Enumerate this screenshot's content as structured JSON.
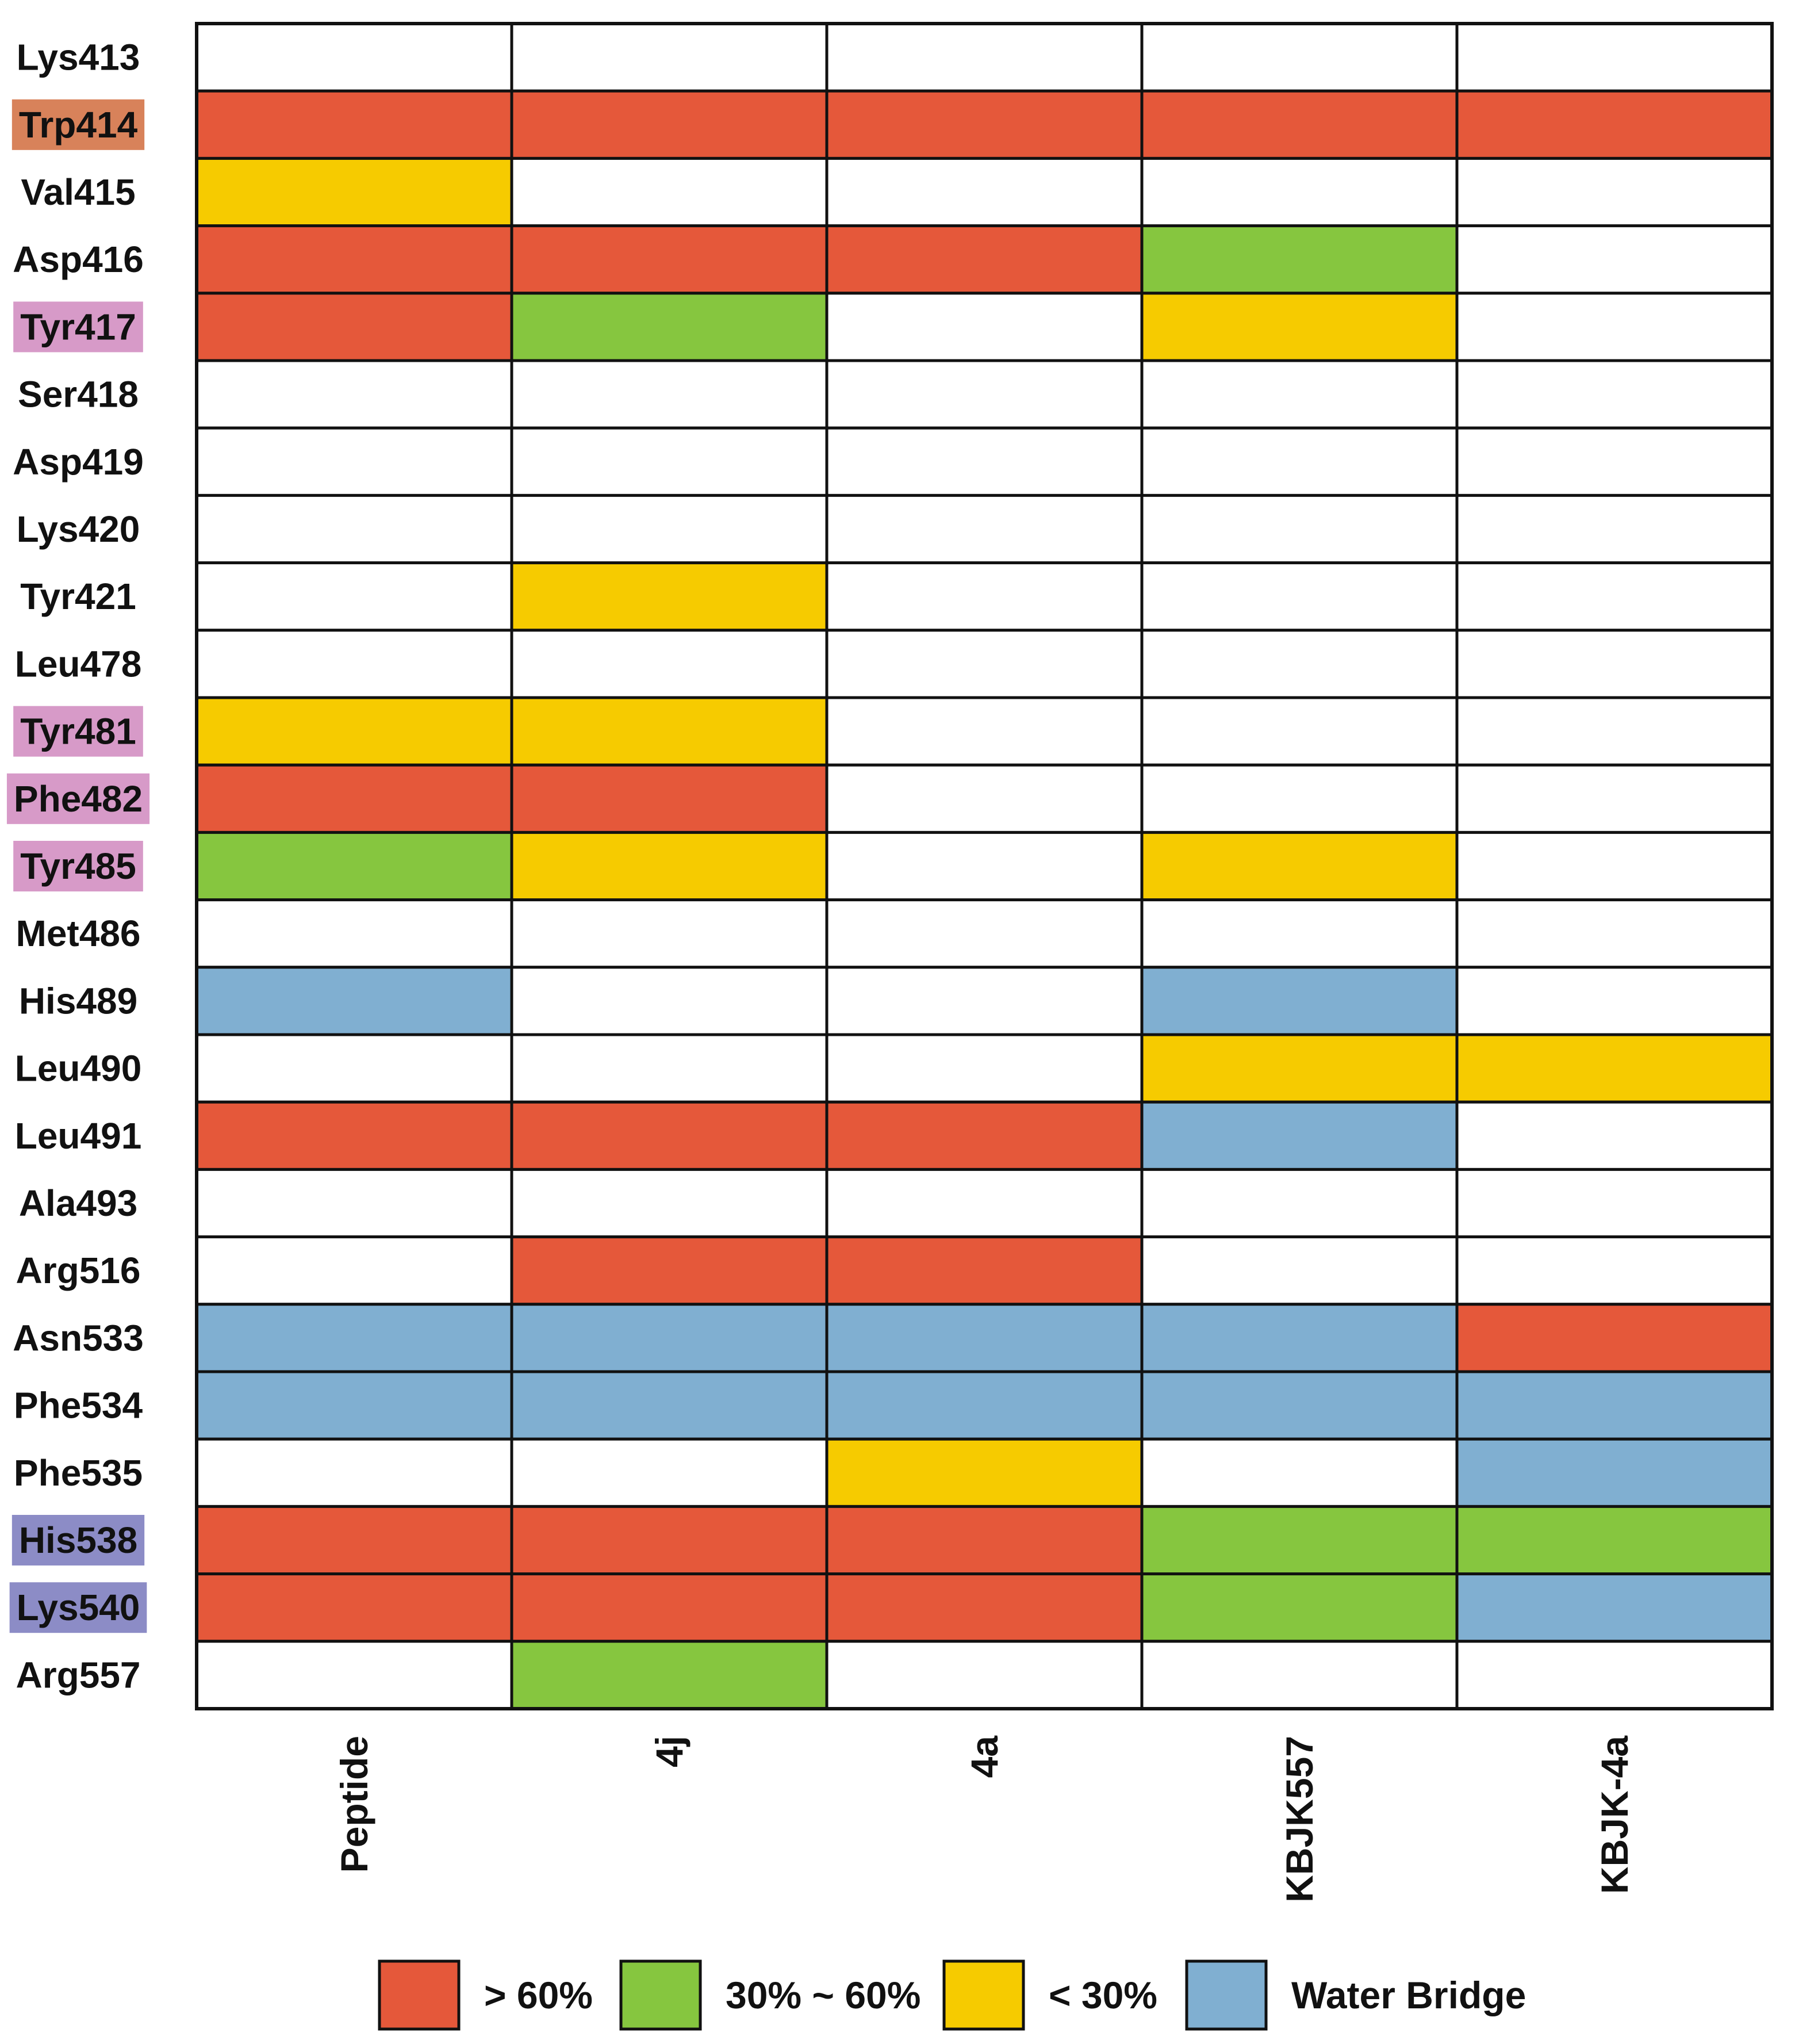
{
  "chart_data": {
    "type": "heatmap",
    "title": "",
    "rows": [
      "Lys413",
      "Trp414",
      "Val415",
      "Asp416",
      "Tyr417",
      "Ser418",
      "Asp419",
      "Lys420",
      "Tyr421",
      "Leu478",
      "Tyr481",
      "Phe482",
      "Tyr485",
      "Met486",
      "His489",
      "Leu490",
      "Leu491",
      "Ala493",
      "Arg516",
      "Asn533",
      "Phe534",
      "Phe535",
      "His538",
      "Lys540",
      "Arg557"
    ],
    "columns": [
      "Peptide",
      "4j",
      "4a",
      "KBJK557",
      "KBJK-4a"
    ],
    "row_highlights": {
      "Trp414": "#d8825a",
      "Tyr417": "#d79ac8",
      "Tyr481": "#d79ac8",
      "Phe482": "#d79ac8",
      "Tyr485": "#d79ac8",
      "His538": "#8c8cc6",
      "Lys540": "#8c8cc6"
    },
    "categories": {
      "high": {
        "label": "> 60%",
        "color": "#e5583a"
      },
      "mid": {
        "label": "30% ~ 60%",
        "color": "#86c63f"
      },
      "low": {
        "label": "< 30%",
        "color": "#f6cb00"
      },
      "water": {
        "label": "Water Bridge",
        "color": "#80afd1"
      },
      "none": {
        "label": "",
        "color": "#ffffff"
      }
    },
    "legend_order": [
      "high",
      "mid",
      "low",
      "water"
    ],
    "cells": [
      [
        "none",
        "none",
        "none",
        "none",
        "none"
      ],
      [
        "high",
        "high",
        "high",
        "high",
        "high"
      ],
      [
        "low",
        "none",
        "none",
        "none",
        "none"
      ],
      [
        "high",
        "high",
        "high",
        "mid",
        "none"
      ],
      [
        "high",
        "mid",
        "none",
        "low",
        "none"
      ],
      [
        "none",
        "none",
        "none",
        "none",
        "none"
      ],
      [
        "none",
        "none",
        "none",
        "none",
        "none"
      ],
      [
        "none",
        "none",
        "none",
        "none",
        "none"
      ],
      [
        "none",
        "low",
        "none",
        "none",
        "none"
      ],
      [
        "none",
        "none",
        "none",
        "none",
        "none"
      ],
      [
        "low",
        "low",
        "none",
        "none",
        "none"
      ],
      [
        "high",
        "high",
        "none",
        "none",
        "none"
      ],
      [
        "mid",
        "low",
        "none",
        "low",
        "none"
      ],
      [
        "none",
        "none",
        "none",
        "none",
        "none"
      ],
      [
        "water",
        "none",
        "none",
        "water",
        "none"
      ],
      [
        "none",
        "none",
        "none",
        "low",
        "low"
      ],
      [
        "high",
        "high",
        "high",
        "water",
        "none"
      ],
      [
        "none",
        "none",
        "none",
        "none",
        "none"
      ],
      [
        "none",
        "high",
        "high",
        "none",
        "none"
      ],
      [
        "water",
        "water",
        "water",
        "water",
        "high"
      ],
      [
        "water",
        "water",
        "water",
        "water",
        "water"
      ],
      [
        "none",
        "none",
        "low",
        "none",
        "water"
      ],
      [
        "high",
        "high",
        "high",
        "mid",
        "mid"
      ],
      [
        "high",
        "high",
        "high",
        "mid",
        "water"
      ],
      [
        "none",
        "mid",
        "none",
        "none",
        "none"
      ]
    ]
  }
}
